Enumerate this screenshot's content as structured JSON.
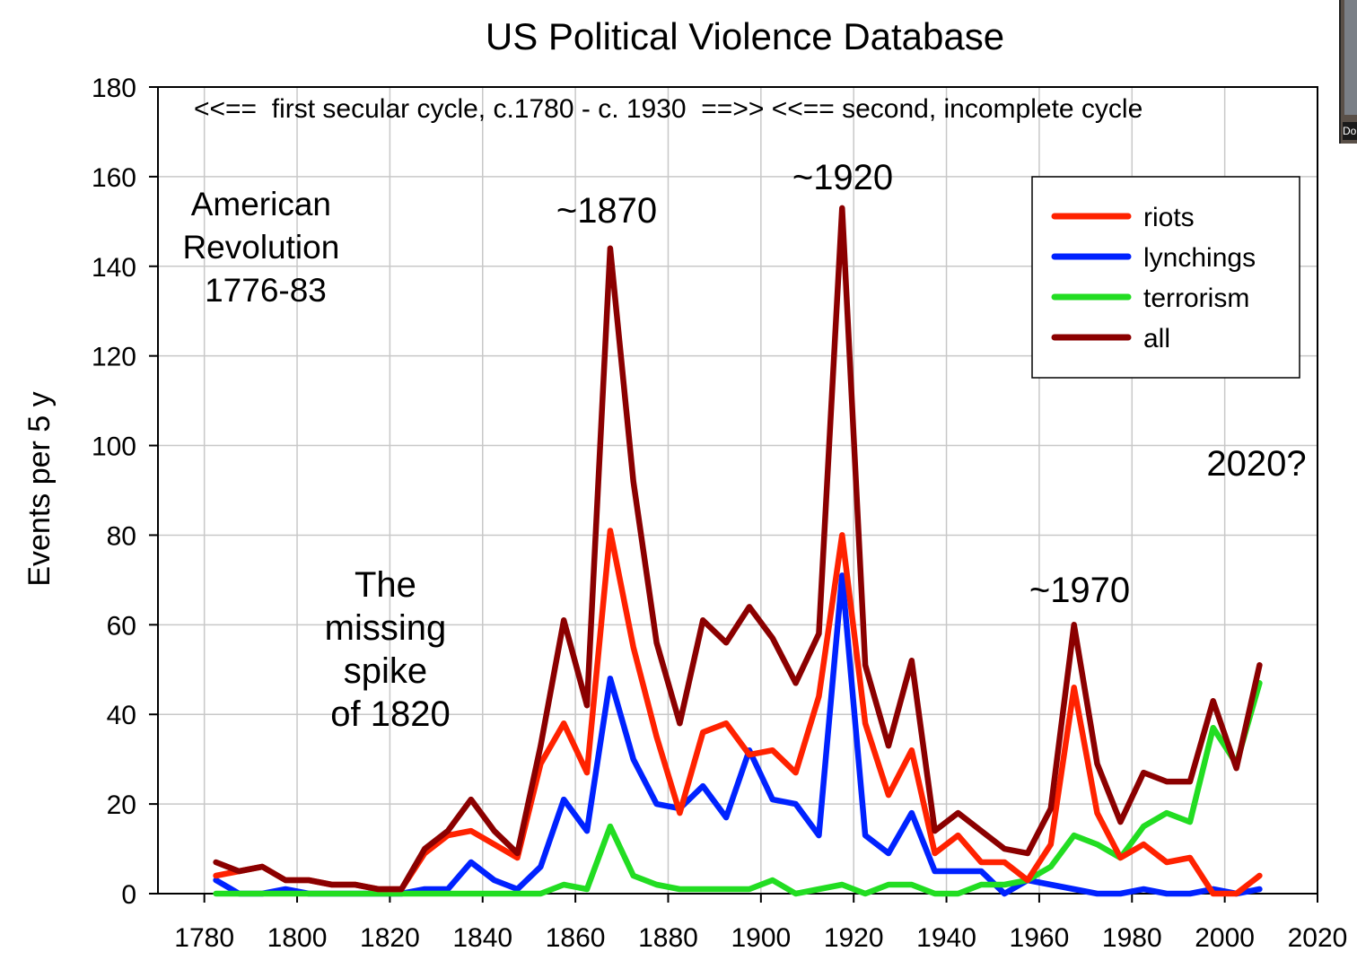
{
  "chart_data": {
    "type": "line",
    "title": "US Political Violence Database",
    "xlabel": "",
    "ylabel": "Events per 5 y",
    "xlim": [
      1770,
      2020
    ],
    "ylim": [
      0,
      180
    ],
    "x_ticks": [
      1780,
      1800,
      1820,
      1840,
      1860,
      1880,
      1900,
      1920,
      1940,
      1960,
      1980,
      2000,
      2020
    ],
    "y_ticks": [
      0,
      20,
      40,
      60,
      80,
      100,
      120,
      140,
      160,
      180
    ],
    "grid": true,
    "legend_position": "top-right",
    "x": [
      1782.5,
      1787.5,
      1792.5,
      1797.5,
      1802.5,
      1807.5,
      1812.5,
      1817.5,
      1822.5,
      1827.5,
      1832.5,
      1837.5,
      1842.5,
      1847.5,
      1852.5,
      1857.5,
      1862.5,
      1867.5,
      1872.5,
      1877.5,
      1882.5,
      1887.5,
      1892.5,
      1897.5,
      1902.5,
      1907.5,
      1912.5,
      1917.5,
      1922.5,
      1927.5,
      1932.5,
      1937.5,
      1942.5,
      1947.5,
      1952.5,
      1957.5,
      1962.5,
      1967.5,
      1972.5,
      1977.5,
      1982.5,
      1987.5,
      1992.5,
      1997.5,
      2002.5,
      2007.5
    ],
    "series": [
      {
        "name": "riots",
        "color": "#ff2200",
        "values": [
          4,
          5,
          6,
          3,
          3,
          2,
          2,
          1,
          1,
          9,
          13,
          14,
          11,
          8,
          29,
          38,
          27,
          81,
          55,
          35,
          18,
          36,
          38,
          31,
          32,
          27,
          44,
          80,
          38,
          22,
          32,
          9,
          13,
          7,
          7,
          3,
          11,
          46,
          18,
          8,
          11,
          7,
          8,
          0,
          0,
          4
        ]
      },
      {
        "name": "lynchings",
        "color": "#0022ff",
        "values": [
          3,
          0,
          0,
          1,
          0,
          0,
          0,
          0,
          0,
          1,
          1,
          7,
          3,
          1,
          6,
          21,
          14,
          48,
          30,
          20,
          19,
          24,
          17,
          32,
          21,
          20,
          13,
          71,
          13,
          9,
          18,
          5,
          5,
          5,
          0,
          3,
          2,
          1,
          0,
          0,
          1,
          0,
          0,
          1,
          0,
          1
        ]
      },
      {
        "name": "terrorism",
        "color": "#22dd22",
        "values": [
          0,
          0,
          0,
          0,
          0,
          0,
          0,
          0,
          0,
          0,
          0,
          0,
          0,
          0,
          0,
          2,
          1,
          15,
          4,
          2,
          1,
          1,
          1,
          1,
          3,
          0,
          1,
          2,
          0,
          2,
          2,
          0,
          0,
          2,
          2,
          3,
          6,
          13,
          11,
          8,
          15,
          18,
          16,
          37,
          29,
          47
        ]
      },
      {
        "name": "all",
        "color": "#8b0000",
        "values": [
          7,
          5,
          6,
          3,
          3,
          2,
          2,
          1,
          1,
          10,
          14,
          21,
          14,
          9,
          33,
          61,
          42,
          144,
          92,
          56,
          38,
          61,
          56,
          64,
          57,
          47,
          58,
          153,
          51,
          33,
          52,
          14,
          18,
          14,
          10,
          9,
          19,
          60,
          29,
          16,
          27,
          25,
          25,
          43,
          28,
          51
        ]
      }
    ],
    "legend": [
      "riots",
      "lynchings",
      "terrorism",
      "all"
    ],
    "annotations": [
      {
        "id": "cycles",
        "text": "<<==  first secular cycle, c.1780 - c. 1930  ==>> <<== second, incomplete cycle"
      },
      {
        "id": "revolution",
        "lines": [
          "American",
          "Revolution",
          "1776-83"
        ]
      },
      {
        "id": "p1870",
        "text": "~1870"
      },
      {
        "id": "p1920",
        "text": "~1920"
      },
      {
        "id": "p1970",
        "text": "~1970"
      },
      {
        "id": "p2020",
        "text": "2020?"
      },
      {
        "id": "missing",
        "lines": [
          "The",
          "missing",
          "spike",
          "of 1820"
        ]
      }
    ]
  },
  "overlay": {
    "webcam_label": "Do"
  }
}
